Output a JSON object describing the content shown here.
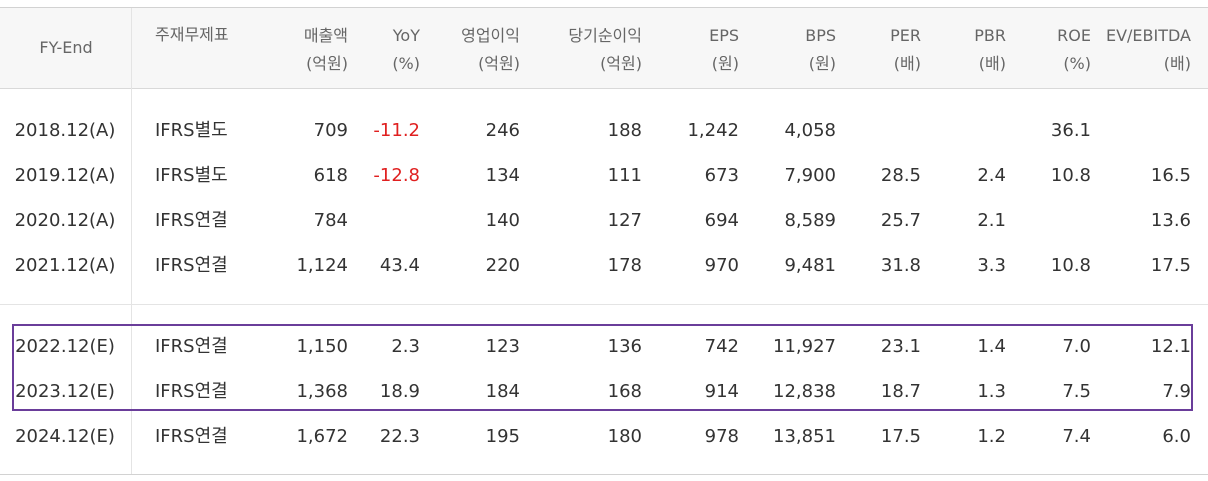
{
  "table": {
    "headers": [
      {
        "line1": "FY-End",
        "line2": ""
      },
      {
        "line1": "주재무제표",
        "line2": ""
      },
      {
        "line1": "매출액",
        "line2": "(억원)"
      },
      {
        "line1": "YoY",
        "line2": "(%)"
      },
      {
        "line1": "영업이익",
        "line2": "(억원)"
      },
      {
        "line1": "당기순이익",
        "line2": "(억원)"
      },
      {
        "line1": "EPS",
        "line2": "(원)"
      },
      {
        "line1": "BPS",
        "line2": "(원)"
      },
      {
        "line1": "PER",
        "line2": "(배)"
      },
      {
        "line1": "PBR",
        "line2": "(배)"
      },
      {
        "line1": "ROE",
        "line2": "(%)"
      },
      {
        "line1": "EV/EBITDA",
        "line2": "(배)"
      }
    ],
    "rows": [
      {
        "fy": "2018.12(A)",
        "fs": "IFRS별도",
        "sales": "709",
        "yoy": "-11.2",
        "op": "246",
        "net": "188",
        "eps": "1,242",
        "bps": "4,058",
        "per": "",
        "pbr": "",
        "roe": "36.1",
        "ev": ""
      },
      {
        "fy": "2019.12(A)",
        "fs": "IFRS별도",
        "sales": "618",
        "yoy": "-12.8",
        "op": "134",
        "net": "111",
        "eps": "673",
        "bps": "7,900",
        "per": "28.5",
        "pbr": "2.4",
        "roe": "10.8",
        "ev": "16.5"
      },
      {
        "fy": "2020.12(A)",
        "fs": "IFRS연결",
        "sales": "784",
        "yoy": "",
        "op": "140",
        "net": "127",
        "eps": "694",
        "bps": "8,589",
        "per": "25.7",
        "pbr": "2.1",
        "roe": "",
        "ev": "13.6"
      },
      {
        "fy": "2021.12(A)",
        "fs": "IFRS연결",
        "sales": "1,124",
        "yoy": "43.4",
        "op": "220",
        "net": "178",
        "eps": "970",
        "bps": "9,481",
        "per": "31.8",
        "pbr": "3.3",
        "roe": "10.8",
        "ev": "17.5"
      },
      {
        "fy": "2022.12(E)",
        "fs": "IFRS연결",
        "sales": "1,150",
        "yoy": "2.3",
        "op": "123",
        "net": "136",
        "eps": "742",
        "bps": "11,927",
        "per": "23.1",
        "pbr": "1.4",
        "roe": "7.0",
        "ev": "12.1"
      },
      {
        "fy": "2023.12(E)",
        "fs": "IFRS연결",
        "sales": "1,368",
        "yoy": "18.9",
        "op": "184",
        "net": "168",
        "eps": "914",
        "bps": "12,838",
        "per": "18.7",
        "pbr": "1.3",
        "roe": "7.5",
        "ev": "7.9"
      },
      {
        "fy": "2024.12(E)",
        "fs": "IFRS연결",
        "sales": "1,672",
        "yoy": "22.3",
        "op": "195",
        "net": "180",
        "eps": "978",
        "bps": "13,851",
        "per": "17.5",
        "pbr": "1.2",
        "roe": "7.4",
        "ev": "6.0"
      }
    ],
    "highlight_color": "#6a3d9a",
    "negative_color": "#e02020"
  }
}
